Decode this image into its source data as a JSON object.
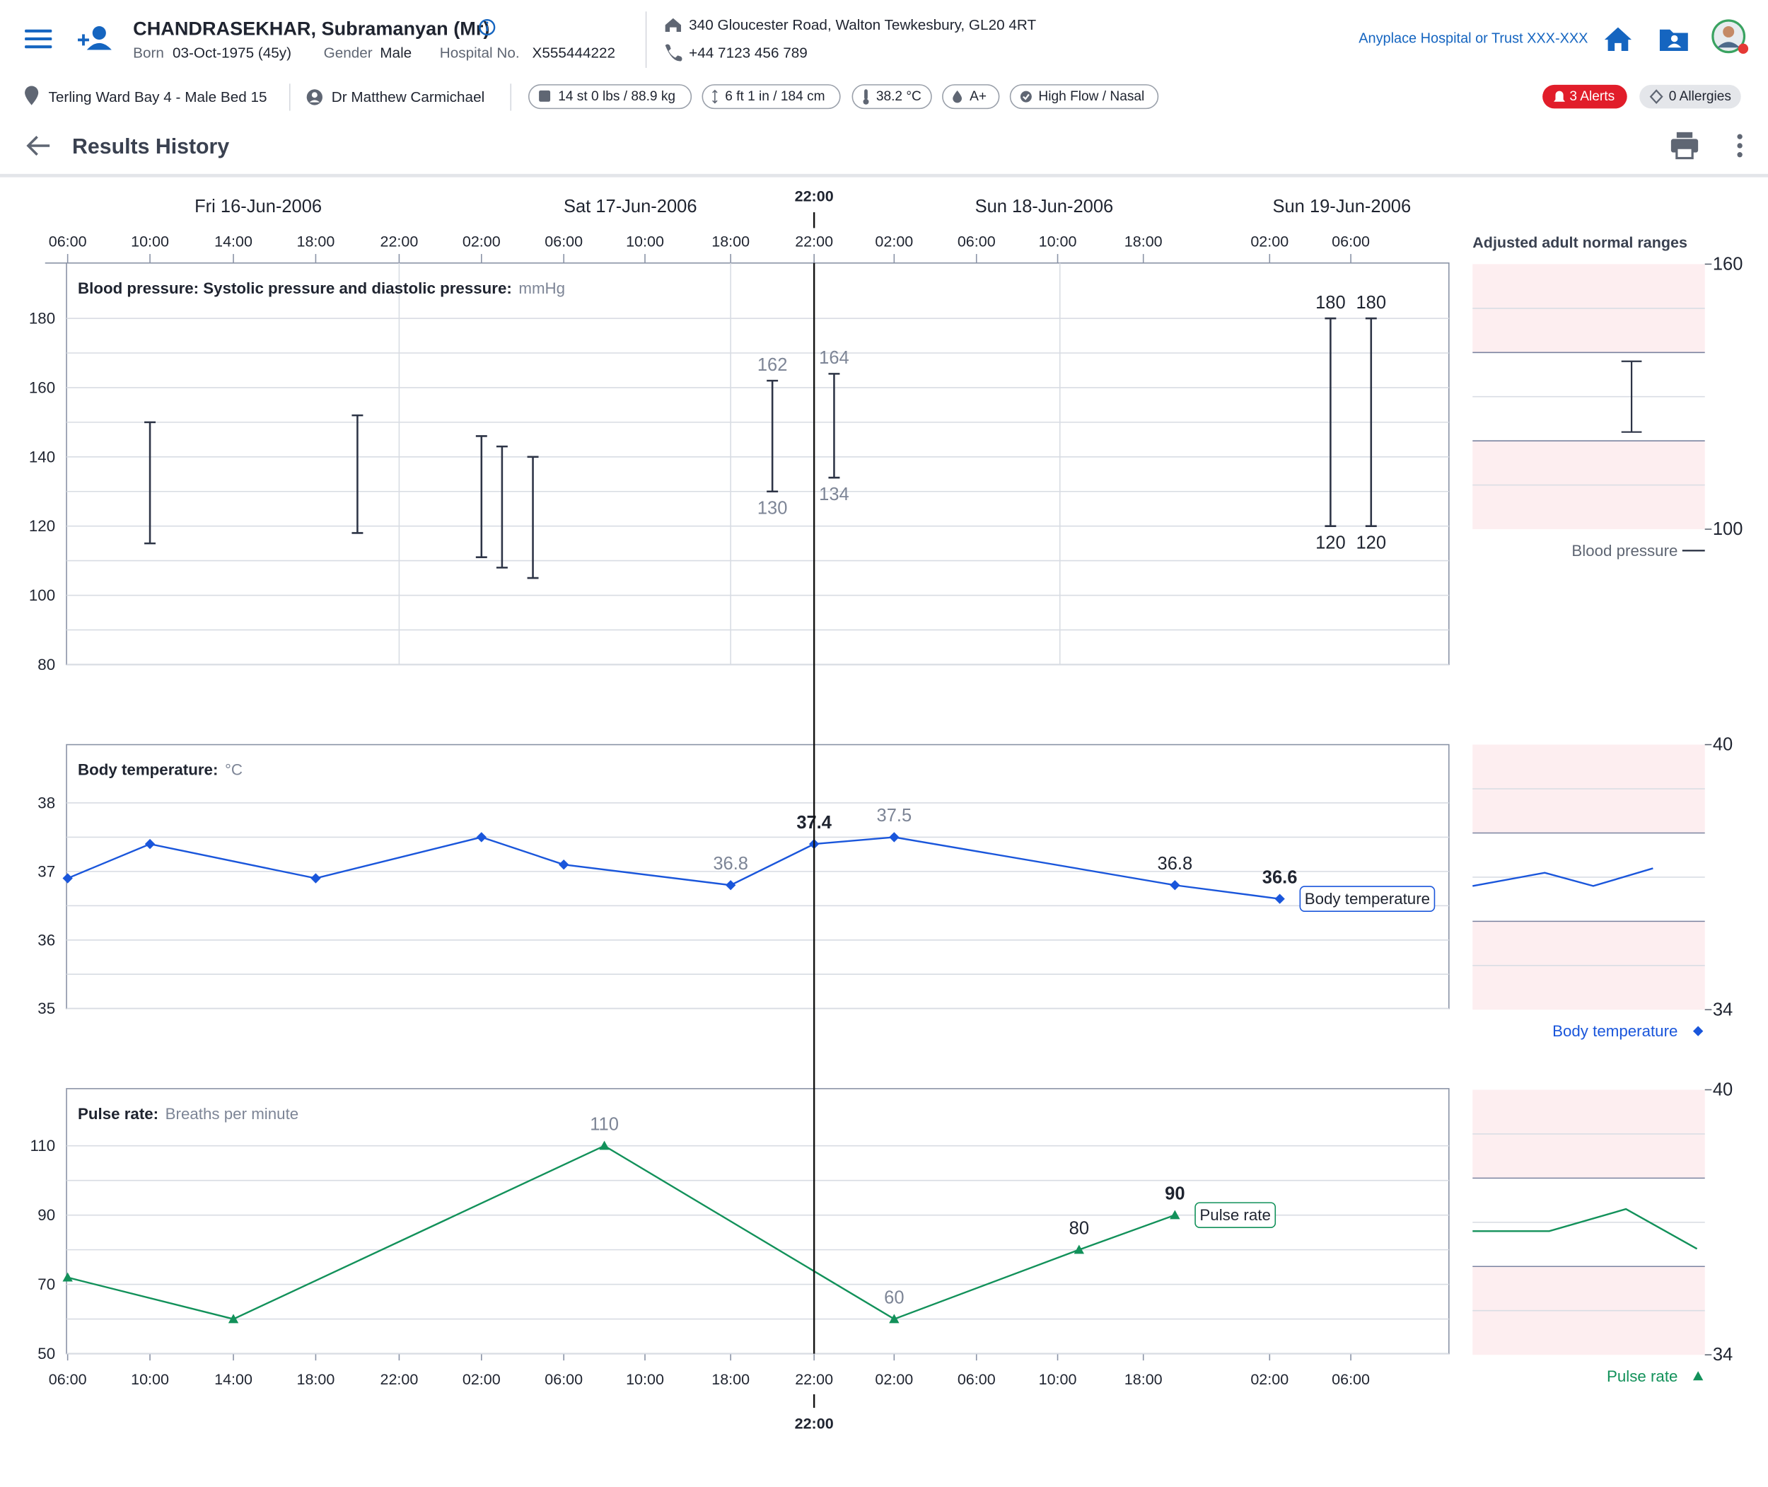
{
  "header": {
    "patient_name": "CHANDRASEKHAR, Subramanyan (Mr)",
    "born_label": "Born",
    "born": "03-Oct-1975 (45y)",
    "gender_label": "Gender",
    "gender": "Male",
    "hospital_no_label": "Hospital No.",
    "hospital_no": "X555444222",
    "address": "340 Gloucester Road, Walton Tewkesbury, GL20 4RT",
    "phone": "+44 7123 456 789",
    "organisation": "Anyplace Hospital or Trust XXX-XXX"
  },
  "banner": {
    "location": "Terling Ward Bay 4 - Male Bed 15",
    "clinician": "Dr Matthew Carmichael",
    "weight": "14 st 0 lbs / 88.9 kg",
    "height": "6 ft 1 in / 184 cm",
    "temperature": "38.2 °C",
    "blood_type": "A+",
    "oxygen": "High Flow / Nasal",
    "alerts": "3 Alerts",
    "allergies": "0 Allergies"
  },
  "page_title": "Results History",
  "timeline": {
    "dates": [
      "Fri 16-Jun-2006",
      "Sat 17-Jun-2006",
      "Sun 18-Jun-2006",
      "Sun 19-Jun-2006"
    ],
    "xticks": [
      {
        "value": 6,
        "label": "06:00"
      },
      {
        "value": 10,
        "label": "10:00"
      },
      {
        "value": 14,
        "label": "14:00"
      },
      {
        "value": 18,
        "label": "18:00"
      },
      {
        "value": 22,
        "label": "22:00"
      },
      {
        "value": 26,
        "label": "02:00"
      },
      {
        "value": 30,
        "label": "06:00"
      },
      {
        "value": 34,
        "label": "10:00"
      },
      {
        "value": 42,
        "label": "18:00"
      },
      {
        "value": 46,
        "label": "22:00"
      },
      {
        "value": 50,
        "label": "02:00"
      },
      {
        "value": 54,
        "label": "06:00"
      },
      {
        "value": 58,
        "label": "10:00"
      },
      {
        "value": 66,
        "label": "18:00"
      },
      {
        "value": 74,
        "label": "02:00"
      },
      {
        "value": 78,
        "label": "06:00"
      }
    ],
    "cursor": {
      "value": 46,
      "label": "22:00"
    }
  },
  "chart_data": [
    {
      "type": "range",
      "title": "Blood pressure: Systolic pressure and diastolic pressure:",
      "unit": "mmHg",
      "ylim": [
        80,
        196
      ],
      "yticks": [
        80,
        100,
        120,
        140,
        160,
        180
      ],
      "grid": true,
      "series": [
        {
          "name": "Blood pressure",
          "color": "#2d3446",
          "x": [
            10,
            20,
            26,
            27,
            28.5,
            44,
            47,
            77,
            79
          ],
          "high": [
            150,
            152,
            146,
            143,
            140,
            162,
            164,
            180,
            180
          ],
          "low": [
            115,
            118,
            111,
            108,
            105,
            130,
            134,
            120,
            120
          ]
        }
      ]
    },
    {
      "type": "line",
      "title": "Body temperature:",
      "unit": "°C",
      "ylim": [
        35,
        38.85
      ],
      "yticks": [
        35,
        36,
        37,
        38
      ],
      "grid": true,
      "series": [
        {
          "name": "Body temperature",
          "color": "#1a56db",
          "marker": "diamond",
          "x": [
            6,
            10,
            18,
            26,
            30,
            42,
            46,
            50,
            68,
            74.5
          ],
          "values": [
            36.9,
            37.4,
            36.9,
            37.5,
            37.1,
            36.8,
            37.4,
            37.5,
            36.8,
            36.6
          ]
        }
      ]
    },
    {
      "type": "line",
      "title": "Pulse rate:",
      "unit": "Breaths per minute",
      "ylim": [
        50,
        126.5
      ],
      "yticks": [
        50,
        70,
        90,
        110
      ],
      "grid": true,
      "series": [
        {
          "name": "Pulse rate",
          "color": "#12915a",
          "marker": "triangle",
          "x": [
            6,
            14,
            32,
            50,
            60,
            68
          ],
          "values": [
            72,
            60,
            110,
            60,
            80,
            90
          ]
        }
      ]
    }
  ],
  "normal_ranges": {
    "title": "Adjusted adult normal ranges",
    "panels": [
      {
        "type": "range",
        "ylim": [
          100,
          160
        ],
        "yticks": [
          100,
          160
        ],
        "normal": [
          120,
          140
        ],
        "high": [
          138
        ],
        "low": [
          122
        ]
      },
      {
        "type": "line",
        "ylim": [
          34,
          40
        ],
        "yticks": [
          34,
          40
        ],
        "normal": [
          36,
          38
        ],
        "values": [
          36.8,
          37.1,
          36.8,
          37.2
        ]
      },
      {
        "type": "line",
        "ylim": [
          34,
          40
        ],
        "yticks": [
          34,
          40
        ],
        "normal": [
          36,
          38
        ],
        "values": [
          36.8,
          36.8,
          37.3,
          36.4
        ]
      }
    ]
  }
}
